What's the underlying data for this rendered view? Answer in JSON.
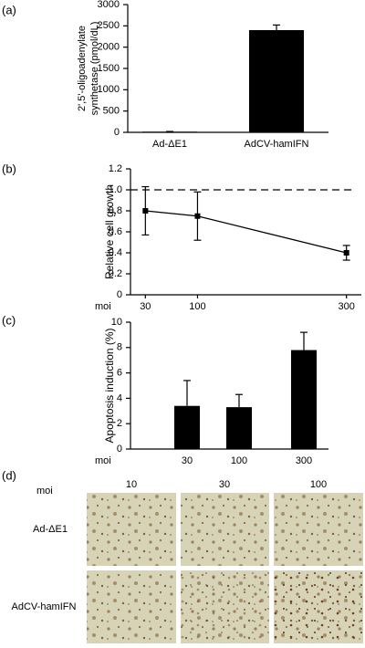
{
  "chart_data": [
    {
      "type": "bar",
      "label": "(a)",
      "ylabel": [
        "2',5'-oligoadenylate",
        "synthetase (pmol/dL)"
      ],
      "categories": [
        "Ad-ΔE1",
        "AdCV-hamIFN"
      ],
      "values": [
        15,
        2400
      ],
      "errors": [
        5,
        120
      ],
      "color": "#000000",
      "ylim": [
        0,
        3000
      ],
      "yticks": [
        0,
        500,
        1000,
        1500,
        2000,
        2500,
        3000
      ]
    },
    {
      "type": "line",
      "label": "(b)",
      "ylabel": "Relative cell growth",
      "xlabel": "moi",
      "x": [
        30,
        100,
        300
      ],
      "values": [
        0.8,
        0.75,
        0.4
      ],
      "errors": [
        0.23,
        0.23,
        0.07
      ],
      "color": "#000000",
      "xlim": [
        10,
        320
      ],
      "xticks": [
        30,
        100,
        300
      ],
      "ylim": [
        0,
        1.2
      ],
      "yticks": [
        0,
        0.2,
        0.4,
        0.6,
        0.8,
        {
          "value": 1,
          "label": "1.0"
        },
        1.2
      ],
      "reference_line": 1
    },
    {
      "type": "bar",
      "label": "(c)",
      "ylabel": "Apoptosis induction (%)",
      "xlabel": "moi",
      "categories": [
        "30",
        "100",
        "300"
      ],
      "values": [
        3.4,
        3.3,
        7.8
      ],
      "errors": [
        2.0,
        1.0,
        1.4
      ],
      "color": "#000000",
      "ylim": [
        0,
        10
      ],
      "yticks": [
        0,
        2,
        4,
        6,
        8,
        10
      ]
    }
  ],
  "micrographs": {
    "label": "(d)",
    "moi_label": "moi",
    "columns": [
      "10",
      "30",
      "100"
    ],
    "rows": [
      "Ad-ΔE1",
      "AdCV-hamIFN"
    ]
  }
}
